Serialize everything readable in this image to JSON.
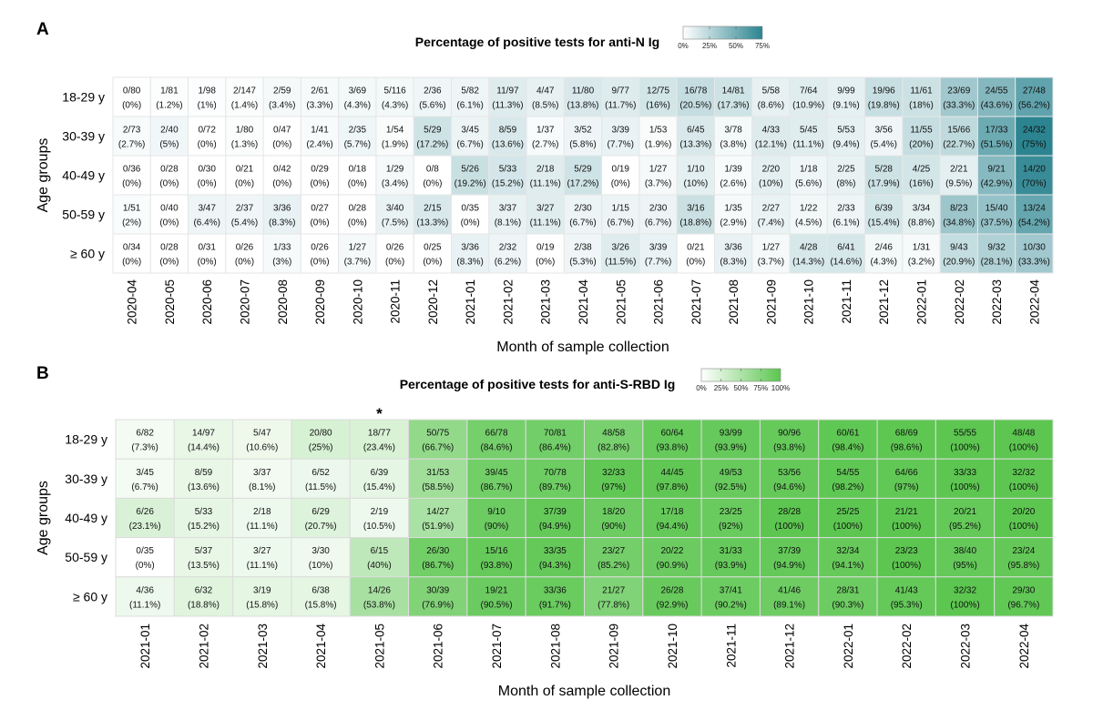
{
  "chart_data": [
    {
      "type": "heatmap",
      "panel": "A",
      "title": "Percentage of positive tests for anti-N Ig",
      "xlabel": "Month of sample collection",
      "ylabel": "Age groups",
      "color_low": "#ffffff",
      "color_high": "#2b8490",
      "color_range": [
        0,
        75
      ],
      "legend_ticks": [
        "0%",
        "25%",
        "50%",
        "75%"
      ],
      "rows": [
        "18-29 y",
        "30-39 y",
        "40-49 y",
        "50-59 y",
        "≥ 60 y"
      ],
      "columns": [
        "2020-04",
        "2020-05",
        "2020-06",
        "2020-07",
        "2020-08",
        "2020-09",
        "2020-10",
        "2020-11",
        "2020-12",
        "2021-01",
        "2021-02",
        "2021-03",
        "2021-04",
        "2021-05",
        "2021-06",
        "2021-07",
        "2021-08",
        "2021-09",
        "2021-10",
        "2021-11",
        "2021-12",
        "2022-01",
        "2022-02",
        "2022-03",
        "2022-04"
      ],
      "cells": [
        [
          [
            0,
            80,
            0
          ],
          [
            1,
            81,
            1.2
          ],
          [
            1,
            98,
            1
          ],
          [
            2,
            147,
            1.4
          ],
          [
            2,
            59,
            3.4
          ],
          [
            2,
            61,
            3.3
          ],
          [
            3,
            69,
            4.3
          ],
          [
            5,
            116,
            4.3
          ],
          [
            2,
            36,
            5.6
          ],
          [
            5,
            82,
            6.1
          ],
          [
            11,
            97,
            11.3
          ],
          [
            4,
            47,
            8.5
          ],
          [
            11,
            80,
            13.8
          ],
          [
            9,
            77,
            11.7
          ],
          [
            12,
            75,
            16
          ],
          [
            16,
            78,
            20.5
          ],
          [
            14,
            81,
            17.3
          ],
          [
            5,
            58,
            8.6
          ],
          [
            7,
            64,
            10.9
          ],
          [
            9,
            99,
            9.1
          ],
          [
            19,
            96,
            19.8
          ],
          [
            11,
            61,
            18
          ],
          [
            23,
            69,
            33.3
          ],
          [
            24,
            55,
            43.6
          ],
          [
            27,
            48,
            56.2
          ]
        ],
        [
          [
            2,
            73,
            2.7
          ],
          [
            2,
            40,
            5
          ],
          [
            0,
            72,
            0
          ],
          [
            1,
            80,
            1.3
          ],
          [
            0,
            47,
            0
          ],
          [
            1,
            41,
            2.4
          ],
          [
            2,
            35,
            5.7
          ],
          [
            1,
            54,
            1.9
          ],
          [
            5,
            29,
            17.2
          ],
          [
            3,
            45,
            6.7
          ],
          [
            8,
            59,
            13.6
          ],
          [
            1,
            37,
            2.7
          ],
          [
            3,
            52,
            5.8
          ],
          [
            3,
            39,
            7.7
          ],
          [
            1,
            53,
            1.9
          ],
          [
            6,
            45,
            13.3
          ],
          [
            3,
            78,
            3.8
          ],
          [
            4,
            33,
            12.1
          ],
          [
            5,
            45,
            11.1
          ],
          [
            5,
            53,
            9.4
          ],
          [
            3,
            56,
            5.4
          ],
          [
            11,
            55,
            20
          ],
          [
            15,
            66,
            22.7
          ],
          [
            17,
            33,
            51.5
          ],
          [
            24,
            32,
            75
          ]
        ],
        [
          [
            0,
            36,
            0
          ],
          [
            0,
            28,
            0
          ],
          [
            0,
            30,
            0
          ],
          [
            0,
            21,
            0
          ],
          [
            0,
            42,
            0
          ],
          [
            0,
            29,
            0
          ],
          [
            0,
            18,
            0
          ],
          [
            1,
            29,
            3.4
          ],
          [
            0,
            8,
            0
          ],
          [
            5,
            26,
            19.2
          ],
          [
            5,
            33,
            15.2
          ],
          [
            2,
            18,
            11.1
          ],
          [
            5,
            29,
            17.2
          ],
          [
            0,
            19,
            0
          ],
          [
            1,
            27,
            3.7
          ],
          [
            1,
            10,
            10
          ],
          [
            1,
            39,
            2.6
          ],
          [
            2,
            20,
            10
          ],
          [
            1,
            18,
            5.6
          ],
          [
            2,
            25,
            8
          ],
          [
            5,
            28,
            17.9
          ],
          [
            4,
            25,
            16
          ],
          [
            2,
            21,
            9.5
          ],
          [
            9,
            21,
            42.9
          ],
          [
            14,
            20,
            70
          ]
        ],
        [
          [
            1,
            51,
            2
          ],
          [
            0,
            40,
            0
          ],
          [
            3,
            47,
            6.4
          ],
          [
            2,
            37,
            5.4
          ],
          [
            3,
            36,
            8.3
          ],
          [
            0,
            27,
            0
          ],
          [
            0,
            28,
            0
          ],
          [
            3,
            40,
            7.5
          ],
          [
            2,
            15,
            13.3
          ],
          [
            0,
            35,
            0
          ],
          [
            3,
            37,
            8.1
          ],
          [
            3,
            27,
            11.1
          ],
          [
            2,
            30,
            6.7
          ],
          [
            1,
            15,
            6.7
          ],
          [
            2,
            30,
            6.7
          ],
          [
            3,
            16,
            18.8
          ],
          [
            1,
            35,
            2.9
          ],
          [
            2,
            27,
            7.4
          ],
          [
            1,
            22,
            4.5
          ],
          [
            2,
            33,
            6.1
          ],
          [
            6,
            39,
            15.4
          ],
          [
            3,
            34,
            8.8
          ],
          [
            8,
            23,
            34.8
          ],
          [
            15,
            40,
            37.5
          ],
          [
            13,
            24,
            54.2
          ]
        ],
        [
          [
            0,
            34,
            0
          ],
          [
            0,
            28,
            0
          ],
          [
            0,
            31,
            0
          ],
          [
            0,
            26,
            0
          ],
          [
            1,
            33,
            3
          ],
          [
            0,
            26,
            0
          ],
          [
            1,
            27,
            3.7
          ],
          [
            0,
            26,
            0
          ],
          [
            0,
            25,
            0
          ],
          [
            3,
            36,
            8.3
          ],
          [
            2,
            32,
            6.2
          ],
          [
            0,
            19,
            0
          ],
          [
            2,
            38,
            5.3
          ],
          [
            3,
            26,
            11.5
          ],
          [
            3,
            39,
            7.7
          ],
          [
            0,
            21,
            0
          ],
          [
            3,
            36,
            8.3
          ],
          [
            1,
            27,
            3.7
          ],
          [
            4,
            28,
            14.3
          ],
          [
            6,
            41,
            14.6
          ],
          [
            2,
            46,
            4.3
          ],
          [
            1,
            31,
            3.2
          ],
          [
            9,
            43,
            20.9
          ],
          [
            9,
            32,
            28.1
          ],
          [
            10,
            30,
            33.3
          ]
        ]
      ]
    },
    {
      "type": "heatmap",
      "panel": "B",
      "title": "Percentage of positive tests for anti-S-RBD Ig",
      "xlabel": "Month of sample collection",
      "ylabel": "Age groups",
      "color_low": "#ffffff",
      "color_high": "#5cc650",
      "color_range": [
        0,
        100
      ],
      "legend_ticks": [
        "0%",
        "25%",
        "50%",
        "75%",
        "100%"
      ],
      "annotation": {
        "column": "2021-05",
        "text": "*"
      },
      "rows": [
        "18-29 y",
        "30-39 y",
        "40-49 y",
        "50-59 y",
        "≥ 60 y"
      ],
      "columns": [
        "2021-01",
        "2021-02",
        "2021-03",
        "2021-04",
        "2021-05",
        "2021-06",
        "2021-07",
        "2021-08",
        "2021-09",
        "2021-10",
        "2021-11",
        "2021-12",
        "2022-01",
        "2022-02",
        "2022-03",
        "2022-04"
      ],
      "cells": [
        [
          [
            6,
            82,
            7.3
          ],
          [
            14,
            97,
            14.4
          ],
          [
            5,
            47,
            10.6
          ],
          [
            20,
            80,
            25
          ],
          [
            18,
            77,
            23.4
          ],
          [
            50,
            75,
            66.7
          ],
          [
            66,
            78,
            84.6
          ],
          [
            70,
            81,
            86.4
          ],
          [
            48,
            58,
            82.8
          ],
          [
            60,
            64,
            93.8
          ],
          [
            93,
            99,
            93.9
          ],
          [
            90,
            96,
            93.8
          ],
          [
            60,
            61,
            98.4
          ],
          [
            68,
            69,
            98.6
          ],
          [
            55,
            55,
            100
          ],
          [
            48,
            48,
            100
          ]
        ],
        [
          [
            3,
            45,
            6.7
          ],
          [
            8,
            59,
            13.6
          ],
          [
            3,
            37,
            8.1
          ],
          [
            6,
            52,
            11.5
          ],
          [
            6,
            39,
            15.4
          ],
          [
            31,
            53,
            58.5
          ],
          [
            39,
            45,
            86.7
          ],
          [
            70,
            78,
            89.7
          ],
          [
            32,
            33,
            97
          ],
          [
            44,
            45,
            97.8
          ],
          [
            49,
            53,
            92.5
          ],
          [
            53,
            56,
            94.6
          ],
          [
            54,
            55,
            98.2
          ],
          [
            64,
            66,
            97
          ],
          [
            33,
            33,
            100
          ],
          [
            32,
            32,
            100
          ]
        ],
        [
          [
            6,
            26,
            23.1
          ],
          [
            5,
            33,
            15.2
          ],
          [
            2,
            18,
            11.1
          ],
          [
            6,
            29,
            20.7
          ],
          [
            2,
            19,
            10.5
          ],
          [
            14,
            27,
            51.9
          ],
          [
            9,
            10,
            90
          ],
          [
            37,
            39,
            94.9
          ],
          [
            18,
            20,
            90
          ],
          [
            17,
            18,
            94.4
          ],
          [
            23,
            25,
            92
          ],
          [
            28,
            28,
            100
          ],
          [
            25,
            25,
            100
          ],
          [
            21,
            21,
            100
          ],
          [
            20,
            21,
            95.2
          ],
          [
            20,
            20,
            100
          ]
        ],
        [
          [
            0,
            35,
            0
          ],
          [
            5,
            37,
            13.5
          ],
          [
            3,
            27,
            11.1
          ],
          [
            3,
            30,
            10
          ],
          [
            6,
            15,
            40
          ],
          [
            26,
            30,
            86.7
          ],
          [
            15,
            16,
            93.8
          ],
          [
            33,
            35,
            94.3
          ],
          [
            23,
            27,
            85.2
          ],
          [
            20,
            22,
            90.9
          ],
          [
            31,
            33,
            93.9
          ],
          [
            37,
            39,
            94.9
          ],
          [
            32,
            34,
            94.1
          ],
          [
            23,
            23,
            100
          ],
          [
            38,
            40,
            95
          ],
          [
            23,
            24,
            95.8
          ]
        ],
        [
          [
            4,
            36,
            11.1
          ],
          [
            6,
            32,
            18.8
          ],
          [
            3,
            19,
            15.8
          ],
          [
            6,
            38,
            15.8
          ],
          [
            14,
            26,
            53.8
          ],
          [
            30,
            39,
            76.9
          ],
          [
            19,
            21,
            90.5
          ],
          [
            33,
            36,
            91.7
          ],
          [
            21,
            27,
            77.8
          ],
          [
            26,
            28,
            92.9
          ],
          [
            37,
            41,
            90.2
          ],
          [
            41,
            46,
            89.1
          ],
          [
            28,
            31,
            90.3
          ],
          [
            41,
            43,
            95.3
          ],
          [
            32,
            32,
            100
          ],
          [
            29,
            30,
            96.7
          ]
        ]
      ]
    }
  ]
}
